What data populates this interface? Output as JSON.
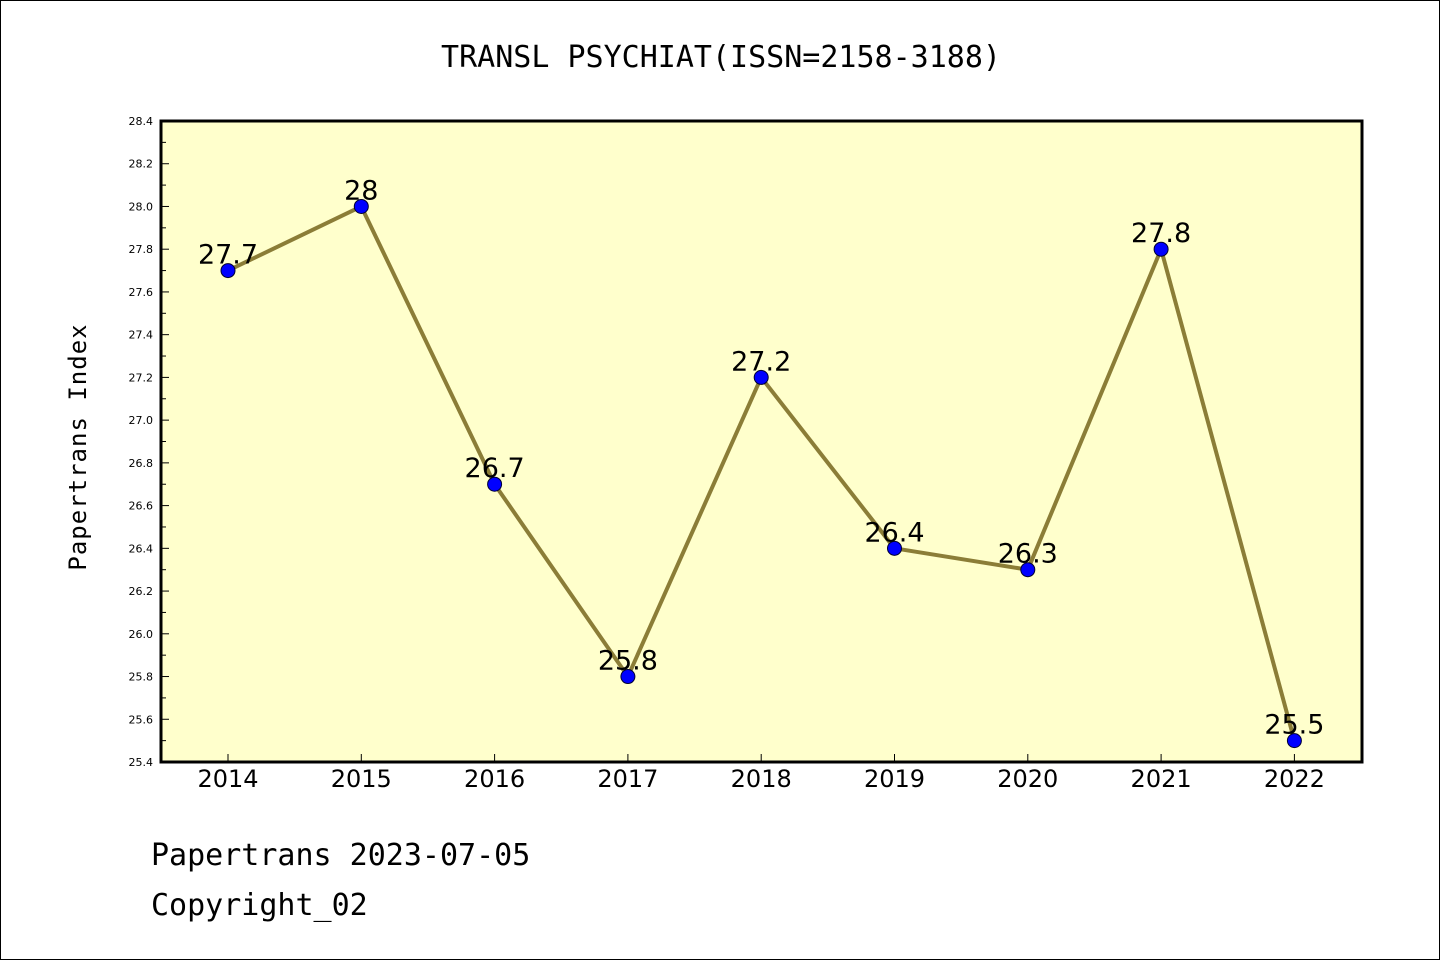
{
  "chart_data": {
    "type": "line",
    "title": "TRANSL PSYCHIAT(ISSN=2158-3188)",
    "ylabel": "Papertrans Index",
    "xlabel": "",
    "categories": [
      "2014",
      "2015",
      "2016",
      "2017",
      "2018",
      "2019",
      "2020",
      "2021",
      "2022"
    ],
    "values": [
      27.7,
      28.0,
      26.7,
      25.8,
      27.2,
      26.4,
      26.3,
      27.8,
      25.5
    ],
    "data_labels": [
      "27.7",
      "28",
      "26.7",
      "25.8",
      "27.2",
      "26.4",
      "26.3",
      "27.8",
      "25.5"
    ],
    "ylim": [
      25.4,
      28.4
    ],
    "yticks": [
      "25.4",
      "25.6",
      "25.8",
      "26.0",
      "26.2",
      "26.4",
      "26.6",
      "26.8",
      "27.0",
      "27.2",
      "27.4",
      "27.6",
      "27.8",
      "28.0",
      "28.2",
      "28.4"
    ],
    "grid": false,
    "legend": "none",
    "colors": {
      "plot_background": "#ffffcc",
      "line": "#8b7d37",
      "marker": "#0000ff",
      "axis": "#000000"
    }
  },
  "footer": {
    "date_line": "Papertrans 2023-07-05",
    "copyright": "Copyright_02"
  }
}
